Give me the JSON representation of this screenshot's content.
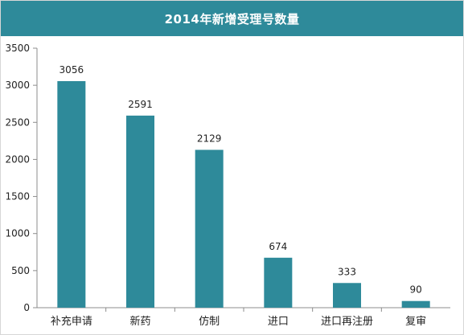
{
  "chart_data": {
    "type": "bar",
    "title": "2014年新增受理号数量",
    "xlabel": "",
    "ylabel": "",
    "categories": [
      "补充申请",
      "新药",
      "仿制",
      "进口",
      "进口再注册",
      "复审"
    ],
    "values": [
      3056,
      2591,
      2129,
      674,
      333,
      90
    ],
    "ylim": [
      0,
      3500
    ],
    "yticks": [
      0,
      500,
      1000,
      1500,
      2000,
      2500,
      3000,
      3500
    ],
    "grid": false,
    "legend": "none"
  },
  "colors": {
    "bar": "#2e8a9a",
    "title_bar": "#2e8a9a",
    "axis": "#8c8c8c"
  }
}
